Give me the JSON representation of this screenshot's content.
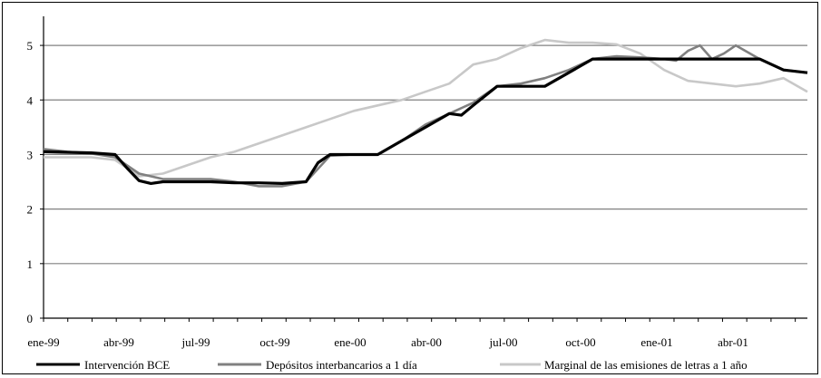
{
  "chart_data": {
    "type": "line",
    "title": "",
    "xlabel": "",
    "ylabel": "",
    "ylim": [
      0,
      5.5
    ],
    "yticks": [
      "0",
      "1",
      "2",
      "3",
      "4",
      "5"
    ],
    "xticks": [
      "ene-99",
      "abr-99",
      "jul-99",
      "oct-99",
      "ene-00",
      "abr-00",
      "jul-00",
      "oct-00",
      "ene-01",
      "abr-01"
    ],
    "grid": "horizontal",
    "legend_position": "bottom",
    "series": [
      {
        "name": "Intervención BCE",
        "color": "#000000",
        "points": [
          [
            0,
            3.05
          ],
          [
            2,
            3.03
          ],
          [
            3,
            3.0
          ],
          [
            3.5,
            2.75
          ],
          [
            4,
            2.52
          ],
          [
            4.5,
            2.47
          ],
          [
            5,
            2.5
          ],
          [
            6,
            2.5
          ],
          [
            7,
            2.5
          ],
          [
            8,
            2.48
          ],
          [
            9,
            2.48
          ],
          [
            10,
            2.47
          ],
          [
            11,
            2.5
          ],
          [
            11.5,
            2.85
          ],
          [
            12,
            3.0
          ],
          [
            13,
            3.0
          ],
          [
            14,
            3.0
          ],
          [
            15,
            3.25
          ],
          [
            16,
            3.5
          ],
          [
            17,
            3.75
          ],
          [
            17.5,
            3.72
          ],
          [
            18,
            3.9
          ],
          [
            19,
            4.25
          ],
          [
            20,
            4.25
          ],
          [
            21,
            4.25
          ],
          [
            22,
            4.5
          ],
          [
            23,
            4.75
          ],
          [
            24,
            4.75
          ],
          [
            25,
            4.75
          ],
          [
            26,
            4.75
          ],
          [
            27,
            4.75
          ],
          [
            28,
            4.75
          ],
          [
            29,
            4.75
          ],
          [
            30,
            4.75
          ],
          [
            31,
            4.55
          ],
          [
            32,
            4.5
          ]
        ]
      },
      {
        "name": "Depósitos interbancarios a 1 día",
        "color": "#808080",
        "points": [
          [
            0,
            3.1
          ],
          [
            1,
            3.05
          ],
          [
            2,
            3.02
          ],
          [
            3,
            2.95
          ],
          [
            4,
            2.65
          ],
          [
            5,
            2.55
          ],
          [
            6,
            2.55
          ],
          [
            7,
            2.55
          ],
          [
            8,
            2.5
          ],
          [
            9,
            2.42
          ],
          [
            10,
            2.42
          ],
          [
            11,
            2.5
          ],
          [
            12,
            2.98
          ],
          [
            13,
            3.0
          ],
          [
            14,
            3.0
          ],
          [
            15,
            3.25
          ],
          [
            16,
            3.55
          ],
          [
            17,
            3.75
          ],
          [
            18,
            3.95
          ],
          [
            19,
            4.25
          ],
          [
            20,
            4.3
          ],
          [
            21,
            4.4
          ],
          [
            22,
            4.55
          ],
          [
            23,
            4.75
          ],
          [
            24,
            4.8
          ],
          [
            25,
            4.78
          ],
          [
            26,
            4.75
          ],
          [
            26.5,
            4.72
          ],
          [
            27,
            4.9
          ],
          [
            27.5,
            5.0
          ],
          [
            28,
            4.75
          ],
          [
            28.5,
            4.85
          ],
          [
            29,
            5.0
          ],
          [
            30,
            4.75
          ],
          [
            31,
            4.55
          ],
          [
            32,
            4.5
          ]
        ]
      },
      {
        "name": "Marginal de las emisiones de letras a 1 año",
        "color": "#c8c8c8",
        "points": [
          [
            0,
            2.95
          ],
          [
            1,
            2.95
          ],
          [
            2,
            2.95
          ],
          [
            3,
            2.9
          ],
          [
            4,
            2.6
          ],
          [
            5,
            2.65
          ],
          [
            6,
            2.8
          ],
          [
            7,
            2.95
          ],
          [
            8,
            3.05
          ],
          [
            9,
            3.2
          ],
          [
            10,
            3.35
          ],
          [
            11,
            3.5
          ],
          [
            12,
            3.65
          ],
          [
            13,
            3.8
          ],
          [
            14,
            3.9
          ],
          [
            15,
            4.0
          ],
          [
            16,
            4.15
          ],
          [
            17,
            4.3
          ],
          [
            18,
            4.65
          ],
          [
            19,
            4.75
          ],
          [
            20,
            4.95
          ],
          [
            21,
            5.1
          ],
          [
            22,
            5.05
          ],
          [
            23,
            5.05
          ],
          [
            24,
            5.02
          ],
          [
            25,
            4.85
          ],
          [
            26,
            4.55
          ],
          [
            27,
            4.35
          ],
          [
            28,
            4.3
          ],
          [
            29,
            4.25
          ],
          [
            30,
            4.3
          ],
          [
            31,
            4.4
          ],
          [
            32,
            4.15
          ]
        ]
      }
    ]
  }
}
